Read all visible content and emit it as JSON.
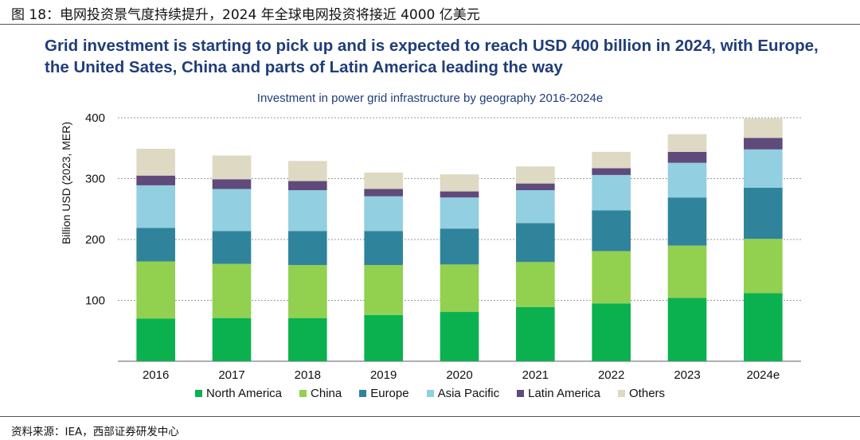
{
  "figure_caption": "图 18：电网投资景气度持续提升，2024 年全球电网投资将接近 4000 亿美元",
  "headline": "Grid investment is starting to pick up and is expected to reach USD 400 billion in 2024, with Europe, the United Sates, China and parts of Latin America leading the way",
  "source": "资料来源：IEA，西部证券研发中心",
  "chart_data": {
    "type": "bar",
    "stacked": true,
    "title": "Investment in power grid infrastructure by geography 2016-2024e",
    "xlabel": "",
    "ylabel": "Billion USD (2023, MER)",
    "ylim": [
      0,
      400
    ],
    "yticks": [
      100,
      200,
      300,
      400
    ],
    "grid": true,
    "legend_position": "bottom",
    "categories": [
      "2016",
      "2017",
      "2018",
      "2019",
      "2020",
      "2021",
      "2022",
      "2023",
      "2024e"
    ],
    "series": [
      {
        "name": "North America",
        "color": "#0bb14f",
        "values": [
          70,
          71,
          71,
          76,
          81,
          89,
          95,
          104,
          112
        ]
      },
      {
        "name": "China",
        "color": "#92d050",
        "values": [
          94,
          89,
          87,
          82,
          78,
          74,
          86,
          86,
          89
        ]
      },
      {
        "name": "Europe",
        "color": "#2f849c",
        "values": [
          55,
          54,
          56,
          56,
          59,
          64,
          67,
          79,
          84
        ]
      },
      {
        "name": "Asia Pacific",
        "color": "#92cfe0",
        "values": [
          70,
          69,
          67,
          57,
          51,
          54,
          58,
          57,
          63
        ]
      },
      {
        "name": "Latin America",
        "color": "#604a7b",
        "values": [
          16,
          16,
          15,
          12,
          10,
          11,
          11,
          18,
          19
        ]
      },
      {
        "name": "Others",
        "color": "#ddd9c3",
        "values": [
          44,
          39,
          33,
          27,
          28,
          28,
          27,
          29,
          32
        ]
      }
    ]
  }
}
